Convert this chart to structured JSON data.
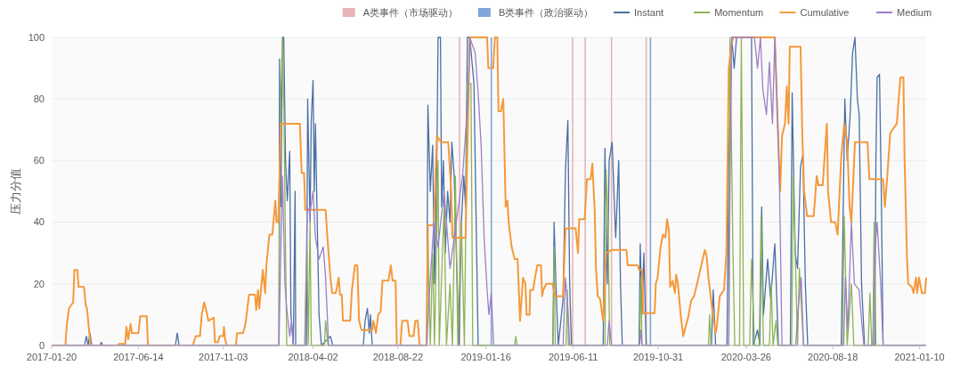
{
  "chart_data": {
    "type": "line",
    "ylabel": "压力分值",
    "xlim": [
      "2017-01-20",
      "2021-01-21"
    ],
    "xticks": [
      "2017-01-20",
      "2017-06-14",
      "2017-11-03",
      "2018-04-02",
      "2018-08-22",
      "2019-01-16",
      "2019-06-11",
      "2019-10-31",
      "2020-03-26",
      "2020-08-18",
      "2021-01-10"
    ],
    "ylim": [
      0,
      100
    ],
    "yticks": [
      0,
      20,
      40,
      60,
      80,
      100
    ],
    "grid": "y",
    "legend": "top right",
    "series": [
      {
        "name": "A类事件（市场驱动）",
        "type": "bar",
        "color": "#e8b4b8",
        "x": [
          "2018-12-03",
          "2019-06-10",
          "2019-07-01",
          "2019-08-14",
          "2019-10-11"
        ],
        "values": [
          100,
          100,
          100,
          100,
          100
        ]
      },
      {
        "name": "B类事件（政治驱动）",
        "type": "bar",
        "color": "#7fa6da",
        "x": [
          "2019-01-25",
          "2019-10-18"
        ],
        "values": [
          100,
          100
        ]
      },
      {
        "name": "Instant",
        "color": "#4a6fa5",
        "x": [
          "2017-01-20",
          "2017-03-16",
          "2017-03-19",
          "2017-03-22",
          "2017-03-25",
          "2017-03-28",
          "2017-04-11",
          "2017-04-13",
          "2017-04-15",
          "2017-08-15",
          "2017-08-18",
          "2017-08-21",
          "2018-02-04",
          "2018-02-05",
          "2018-02-07",
          "2018-02-10",
          "2018-02-12",
          "2018-02-15",
          "2018-02-18",
          "2018-02-22",
          "2018-02-24",
          "2018-02-28",
          "2018-03-03",
          "2018-03-04",
          "2018-03-22",
          "2018-03-24",
          "2018-03-28",
          "2018-03-30",
          "2018-04-02",
          "2018-04-04",
          "2018-04-06",
          "2018-04-09",
          "2018-04-12",
          "2018-04-16",
          "2018-05-01",
          "2018-05-05",
          "2018-06-25",
          "2018-06-28",
          "2018-07-02",
          "2018-07-05",
          "2018-07-07",
          "2018-07-10",
          "2018-10-09",
          "2018-10-11",
          "2018-10-15",
          "2018-10-19",
          "2018-10-22",
          "2018-10-26",
          "2018-10-28",
          "2018-11-01",
          "2018-11-03",
          "2018-11-06",
          "2018-11-09",
          "2018-11-13",
          "2018-11-17",
          "2018-11-20",
          "2018-11-24",
          "2018-11-29",
          "2018-12-02",
          "2018-12-06",
          "2018-12-10",
          "2018-12-13",
          "2018-12-16",
          "2018-12-20",
          "2018-12-27",
          "2019-01-03",
          "2019-05-08",
          "2019-05-10",
          "2019-05-13",
          "2019-05-17",
          "2019-05-25",
          "2019-05-29",
          "2019-06-02",
          "2019-06-05",
          "2019-06-08",
          "2019-07-31",
          "2019-08-03",
          "2019-08-07",
          "2019-08-10",
          "2019-08-15",
          "2019-08-18",
          "2019-08-21",
          "2019-08-26",
          "2019-08-29",
          "2019-09-01",
          "2019-09-29",
          "2019-10-01",
          "2019-10-04",
          "2019-10-07",
          "2019-10-11",
          "2020-01-28",
          "2020-01-31",
          "2020-02-04",
          "2020-02-23",
          "2020-02-26",
          "2020-02-28",
          "2020-03-02",
          "2020-03-06",
          "2020-03-10",
          "2020-04-04",
          "2020-04-07",
          "2020-04-14",
          "2020-04-18",
          "2020-04-21",
          "2020-04-24",
          "2020-05-01",
          "2020-05-06",
          "2020-05-13",
          "2020-05-19",
          "2020-06-08",
          "2020-06-11",
          "2020-06-16",
          "2020-06-20",
          "2020-06-25",
          "2020-06-29",
          "2020-07-03",
          "2020-07-07",
          "2020-09-01",
          "2020-09-07",
          "2020-09-11",
          "2020-09-16",
          "2020-09-20",
          "2020-09-24",
          "2020-09-28",
          "2020-10-01",
          "2020-10-05",
          "2020-10-10",
          "2020-10-27",
          "2020-10-29",
          "2020-10-31",
          "2020-11-04",
          "2020-11-07",
          "2020-11-10",
          "2021-01-21"
        ],
        "values": [
          0,
          0,
          3,
          0,
          4,
          0,
          0,
          1,
          0,
          0,
          4,
          0,
          0,
          93,
          45,
          100,
          100,
          60,
          47,
          63,
          10,
          0,
          50,
          0,
          0,
          80,
          40,
          73,
          86,
          50,
          72,
          40,
          10,
          0,
          3,
          0,
          0,
          8,
          12,
          4,
          10,
          0,
          0,
          78,
          50,
          65,
          20,
          60,
          100,
          100,
          45,
          60,
          30,
          50,
          40,
          66,
          55,
          20,
          0,
          40,
          55,
          45,
          100,
          100,
          85,
          0,
          0,
          40,
          20,
          0,
          15,
          57,
          73,
          20,
          0,
          0,
          64,
          20,
          60,
          66,
          50,
          35,
          60,
          20,
          0,
          0,
          33,
          10,
          30,
          0,
          0,
          18,
          0,
          0,
          60,
          75,
          100,
          90,
          100,
          100,
          0,
          5,
          0,
          45,
          10,
          28,
          15,
          33,
          0,
          0,
          82,
          30,
          25,
          58,
          62,
          20,
          0,
          0,
          80,
          60,
          75,
          95,
          100,
          80,
          75,
          20,
          0,
          0,
          60,
          87,
          88,
          50,
          0,
          0
        ]
      },
      {
        "name": "Momentum",
        "color": "#8db356",
        "x": [
          "2017-01-20",
          "2018-02-04",
          "2018-02-05",
          "2018-02-07",
          "2018-02-10",
          "2018-02-12",
          "2018-02-17",
          "2018-03-19",
          "2018-03-21",
          "2018-03-23",
          "2018-03-25",
          "2018-03-28",
          "2018-03-30",
          "2018-04-21",
          "2018-04-23",
          "2018-04-27",
          "2018-10-09",
          "2018-10-11",
          "2018-10-15",
          "2018-10-19",
          "2018-10-22",
          "2018-10-28",
          "2018-10-30",
          "2018-11-07",
          "2018-11-11",
          "2018-11-17",
          "2018-11-21",
          "2018-11-26",
          "2018-11-30",
          "2018-12-06",
          "2018-12-11",
          "2018-12-16",
          "2018-12-22",
          "2018-12-25",
          "2019-03-05",
          "2019-03-07",
          "2019-03-09",
          "2019-05-08",
          "2019-05-10",
          "2019-05-12",
          "2019-05-30",
          "2019-06-01",
          "2019-06-03",
          "2019-08-03",
          "2019-08-05",
          "2019-08-08",
          "2019-08-11",
          "2019-09-30",
          "2019-10-02",
          "2019-10-04",
          "2020-01-23",
          "2020-01-25",
          "2020-01-27",
          "2020-02-26",
          "2020-02-28",
          "2020-03-04",
          "2020-03-07",
          "2020-03-15",
          "2020-03-18",
          "2020-03-22",
          "2020-04-01",
          "2020-04-04",
          "2020-04-09",
          "2020-04-17",
          "2020-04-20",
          "2020-04-24",
          "2020-05-04",
          "2020-05-07",
          "2020-05-10",
          "2020-05-15",
          "2020-05-18",
          "2020-06-10",
          "2020-06-13",
          "2020-06-20",
          "2020-06-23",
          "2020-06-30",
          "2020-09-03",
          "2020-09-06",
          "2020-09-11",
          "2020-09-18",
          "2020-09-22",
          "2020-10-16",
          "2020-10-19",
          "2020-10-22",
          "2020-10-24",
          "2020-10-26",
          "2020-10-29",
          "2021-01-21"
        ],
        "values": [
          0,
          0,
          45,
          80,
          100,
          80,
          0,
          0,
          20,
          30,
          0,
          40,
          0,
          0,
          8,
          0,
          0,
          35,
          0,
          30,
          0,
          60,
          0,
          45,
          0,
          20,
          0,
          55,
          0,
          40,
          0,
          85,
          85,
          0,
          0,
          3,
          0,
          0,
          32,
          0,
          0,
          18,
          0,
          0,
          57,
          40,
          0,
          0,
          22,
          0,
          0,
          10,
          0,
          0,
          100,
          30,
          0,
          0,
          100,
          0,
          0,
          28,
          0,
          0,
          42,
          0,
          0,
          20,
          0,
          8,
          0,
          0,
          55,
          0,
          25,
          0,
          0,
          42,
          0,
          20,
          0,
          0,
          17,
          0,
          0,
          40,
          0,
          0
        ]
      },
      {
        "name": "Cumulative",
        "color": "#f5993a",
        "x": [
          "2017-01-20",
          "2017-02-12",
          "2017-02-14",
          "2017-02-18",
          "2017-02-25",
          "2017-02-27",
          "2017-03-04",
          "2017-03-06",
          "2017-03-15",
          "2017-03-18",
          "2017-03-20",
          "2017-03-26",
          "2017-05-10",
          "2017-05-13",
          "2017-05-23",
          "2017-05-25",
          "2017-05-28",
          "2017-06-01",
          "2017-06-03",
          "2017-06-14",
          "2017-06-17",
          "2017-06-28",
          "2017-06-30",
          "2017-09-13",
          "2017-09-18",
          "2017-09-25",
          "2017-09-28",
          "2017-10-02",
          "2017-10-06",
          "2017-10-09",
          "2017-10-18",
          "2017-10-20",
          "2017-10-25",
          "2017-10-28",
          "2017-11-03",
          "2017-11-04",
          "2017-11-06",
          "2017-11-09",
          "2017-11-24",
          "2017-11-26",
          "2017-12-06",
          "2017-12-10",
          "2017-12-16",
          "2017-12-26",
          "2017-12-28",
          "2017-12-31",
          "2018-01-02",
          "2018-01-05",
          "2018-01-08",
          "2018-01-12",
          "2018-01-14",
          "2018-01-19",
          "2018-01-24",
          "2018-01-29",
          "2018-01-31",
          "2018-02-03",
          "2018-02-07",
          "2018-03-11",
          "2018-03-14",
          "2018-03-18",
          "2018-03-20",
          "2018-04-23",
          "2018-04-26",
          "2018-05-01",
          "2018-05-04",
          "2018-05-10",
          "2018-05-15",
          "2018-05-17",
          "2018-05-20",
          "2018-05-22",
          "2018-06-03",
          "2018-06-06",
          "2018-06-11",
          "2018-06-15",
          "2018-06-18",
          "2018-06-22",
          "2018-07-10",
          "2018-07-12",
          "2018-07-16",
          "2018-07-20",
          "2018-07-24",
          "2018-07-27",
          "2018-08-06",
          "2018-08-10",
          "2018-08-13",
          "2018-08-18",
          "2018-08-20",
          "2018-08-26",
          "2018-08-29",
          "2018-09-07",
          "2018-09-10",
          "2018-09-17",
          "2018-09-20",
          "2018-09-24",
          "2018-09-27",
          "2018-10-09",
          "2018-10-11",
          "2018-10-21",
          "2018-10-26",
          "2018-11-02",
          "2018-11-14",
          "2018-11-19",
          "2018-11-21",
          "2018-12-13",
          "2018-12-16",
          "2018-12-20",
          "2019-01-18",
          "2019-01-20",
          "2019-01-28",
          "2019-01-31",
          "2019-02-04",
          "2019-02-06",
          "2019-02-10",
          "2019-02-14",
          "2019-02-16",
          "2019-02-18",
          "2019-02-21",
          "2019-02-23",
          "2019-02-28",
          "2019-03-05",
          "2019-03-10",
          "2019-03-14",
          "2019-03-19",
          "2019-03-23",
          "2019-03-25",
          "2019-03-30",
          "2019-03-31",
          "2019-04-05",
          "2019-04-08",
          "2019-04-12",
          "2019-04-18",
          "2019-04-20",
          "2019-04-22",
          "2019-04-27",
          "2019-05-07",
          "2019-05-12",
          "2019-05-25",
          "2019-05-29",
          "2019-06-15",
          "2019-06-19",
          "2019-06-21",
          "2019-06-30",
          "2019-07-04",
          "2019-07-10",
          "2019-07-13",
          "2019-07-17",
          "2019-07-19",
          "2019-07-22",
          "2019-07-26",
          "2019-07-31",
          "2019-08-05",
          "2019-08-15",
          "2019-09-08",
          "2019-09-10",
          "2019-09-27",
          "2019-09-29",
          "2019-10-04",
          "2019-10-06",
          "2019-10-25",
          "2019-10-27",
          "2019-10-30",
          "2019-11-04",
          "2019-11-08",
          "2019-11-12",
          "2019-11-15",
          "2019-11-18",
          "2019-11-20",
          "2019-11-24",
          "2019-11-28",
          "2019-11-30",
          "2019-12-03",
          "2019-12-08",
          "2019-12-12",
          "2019-12-15",
          "2019-12-20",
          "2019-12-25",
          "2019-12-30",
          "2020-01-04",
          "2020-01-11",
          "2020-01-17",
          "2020-01-20",
          "2020-01-23",
          "2020-01-28",
          "2020-01-31",
          "2020-02-04",
          "2020-02-06",
          "2020-02-11",
          "2020-02-18",
          "2020-02-22",
          "2020-02-26",
          "2020-03-01",
          "2020-03-04",
          "2020-05-13",
          "2020-05-18",
          "2020-05-22",
          "2020-05-25",
          "2020-05-30",
          "2020-06-02",
          "2020-06-05",
          "2020-06-07",
          "2020-06-25",
          "2020-06-28",
          "2020-07-01",
          "2020-07-06",
          "2020-07-17",
          "2020-07-22",
          "2020-07-25",
          "2020-08-01",
          "2020-08-08",
          "2020-08-10",
          "2020-08-15",
          "2020-08-22",
          "2020-08-26",
          "2020-09-01",
          "2020-09-06",
          "2020-09-11",
          "2020-09-15",
          "2020-09-18",
          "2020-09-24",
          "2020-10-15",
          "2020-10-18",
          "2020-11-10",
          "2020-11-13",
          "2020-11-17",
          "2020-11-22",
          "2020-12-03",
          "2020-12-06",
          "2020-12-09",
          "2020-12-14",
          "2020-12-16",
          "2020-12-20",
          "2020-12-22",
          "2020-12-28",
          "2020-12-31",
          "2021-01-04",
          "2021-01-06",
          "2021-01-09",
          "2021-01-14",
          "2021-01-19",
          "2021-01-21"
        ],
        "values": [
          0,
          0,
          6,
          12,
          14,
          24.5,
          24.5,
          19,
          19,
          13,
          12,
          0,
          0,
          0.5,
          0.5,
          6,
          2,
          7,
          4,
          4,
          9.5,
          9.5,
          0,
          0,
          3,
          3,
          10,
          14,
          11,
          8,
          9,
          1,
          1,
          3,
          3,
          6,
          2,
          0,
          0,
          4,
          4,
          7,
          16.5,
          16.5,
          11.5,
          18,
          12,
          18,
          24.5,
          17,
          26,
          36,
          36,
          47,
          40,
          40,
          72,
          72,
          56,
          56,
          44,
          44,
          35,
          22,
          17,
          17,
          22,
          16.5,
          16.5,
          8,
          8,
          18,
          26,
          26,
          8,
          5,
          5,
          8,
          4,
          10,
          11,
          21,
          21,
          26,
          21,
          21,
          0,
          0,
          8,
          8,
          3,
          3,
          8,
          8,
          0,
          0,
          39,
          39,
          68,
          66,
          66,
          50,
          35,
          35,
          63,
          100,
          100,
          90,
          90,
          100,
          100,
          76,
          76,
          80,
          63,
          45,
          47,
          40,
          32,
          28,
          28,
          8,
          22,
          20,
          10,
          10,
          18,
          18,
          22,
          26,
          26,
          16,
          18,
          20,
          20,
          16,
          16,
          38,
          38,
          30,
          41,
          41,
          54,
          54,
          59,
          43,
          25,
          16,
          15,
          8,
          30,
          31,
          31,
          26,
          26,
          24.5,
          24.5,
          10.5,
          10.5,
          20,
          22,
          32,
          36,
          35,
          41,
          37,
          19,
          21,
          17,
          23,
          20,
          9,
          3,
          5.5,
          9,
          14.5,
          16,
          20,
          26,
          31,
          29,
          22,
          14,
          9,
          4,
          6,
          16,
          18,
          30,
          90,
          97,
          100,
          100,
          70,
          50,
          68,
          72,
          84,
          72,
          97,
          97,
          68,
          50,
          42,
          42,
          55,
          52,
          52,
          72,
          50,
          40,
          40,
          36,
          61,
          72,
          66,
          45,
          40,
          66,
          66,
          54,
          54,
          45,
          55,
          69,
          72,
          80,
          87,
          87,
          60,
          28,
          20,
          19,
          17,
          22,
          17,
          22,
          17,
          17,
          22
        ]
      },
      {
        "name": "Medium",
        "color": "#9b80c6",
        "x": [
          "2017-01-20",
          "2018-02-04",
          "2018-02-07",
          "2018-02-10",
          "2018-02-14",
          "2018-02-17",
          "2018-02-22",
          "2018-02-25",
          "2018-02-28",
          "2018-03-20",
          "2018-03-23",
          "2018-03-28",
          "2018-04-02",
          "2018-04-06",
          "2018-04-12",
          "2018-04-19",
          "2018-04-23",
          "2018-04-28",
          "2018-10-09",
          "2018-10-13",
          "2018-10-21",
          "2018-10-28",
          "2018-11-07",
          "2018-11-17",
          "2018-11-24",
          "2018-12-01",
          "2018-12-08",
          "2018-12-17",
          "2018-12-20",
          "2018-12-29",
          "2019-01-03",
          "2019-01-08",
          "2019-01-13",
          "2019-01-18",
          "2019-01-21",
          "2019-01-25",
          "2019-01-29",
          "2019-05-25",
          "2019-05-29",
          "2019-06-02",
          "2019-06-05",
          "2019-08-07",
          "2019-08-10",
          "2019-08-14",
          "2019-09-30",
          "2019-10-02",
          "2019-10-04",
          "2020-02-26",
          "2020-02-28",
          "2020-03-02",
          "2020-04-09",
          "2020-04-14",
          "2020-04-19",
          "2020-04-23",
          "2020-04-29",
          "2020-05-04",
          "2020-05-09",
          "2020-05-13",
          "2020-05-18",
          "2020-05-21",
          "2020-05-25",
          "2020-06-17",
          "2020-06-20",
          "2020-06-26",
          "2020-06-30",
          "2020-09-05",
          "2020-09-08",
          "2020-09-12",
          "2020-09-18",
          "2020-09-23",
          "2020-10-01",
          "2020-10-05",
          "2020-10-09",
          "2020-10-24",
          "2020-10-27",
          "2020-10-31",
          "2020-11-06",
          "2020-11-10",
          "2021-01-21"
        ],
        "values": [
          0,
          0,
          30,
          55,
          20,
          12,
          3,
          8,
          0,
          0,
          45,
          43,
          50,
          35,
          28,
          32,
          22,
          0,
          0,
          15,
          40,
          32,
          50,
          25,
          35,
          45,
          55,
          80,
          100,
          95,
          82,
          65,
          35,
          18,
          10,
          17,
          0,
          0,
          22,
          12,
          0,
          0,
          8,
          0,
          0,
          5,
          0,
          0,
          50,
          100,
          100,
          90,
          100,
          83,
          75,
          92,
          72,
          100,
          72,
          50,
          0,
          0,
          10,
          22,
          0,
          0,
          22,
          5,
          40,
          20,
          18,
          8,
          0,
          0,
          30,
          40,
          20,
          0,
          0
        ]
      }
    ]
  }
}
